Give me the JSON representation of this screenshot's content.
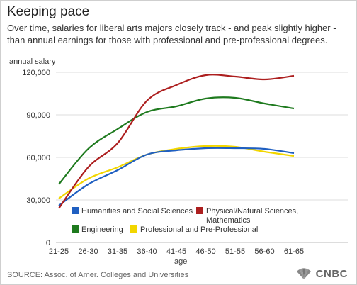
{
  "header": {
    "title": "Keeping pace",
    "subtitle": "Over time, salaries for liberal arts majors closely track - and peak slightly higher - than annual earnings for those with professional and pre-professional degrees."
  },
  "footer": {
    "source": "SOURCE: Assoc. of Amer. Colleges and Universities",
    "brand": "CNBC"
  },
  "chart_data": {
    "type": "line",
    "title": "Keeping pace",
    "xlabel": "age",
    "ylabel": "annual salary",
    "categories": [
      "21-25",
      "26-30",
      "31-35",
      "36-40",
      "41-45",
      "46-50",
      "51-55",
      "56-60",
      "61-65"
    ],
    "ylim": [
      0,
      120000
    ],
    "yticks": [
      0,
      30000,
      60000,
      90000,
      120000
    ],
    "ytick_labels": [
      "0",
      "30,000",
      "60,000",
      "90,000",
      "120,000"
    ],
    "grid": true,
    "legend_position": "inside-bottom",
    "series": [
      {
        "name": "Humanities and Social Sciences",
        "color": "#1f5fc1",
        "values": [
          26000,
          41000,
          51000,
          62000,
          65000,
          66500,
          66500,
          66000,
          63000
        ]
      },
      {
        "name": "Physical/Natural Sciences, Mathematics",
        "color": "#ad1f1f",
        "values": [
          24000,
          53000,
          70000,
          100000,
          111000,
          118000,
          117000,
          115000,
          117500
        ]
      },
      {
        "name": "Engineering",
        "color": "#1e7a1e",
        "values": [
          41000,
          66000,
          80000,
          92000,
          96000,
          101500,
          102000,
          98000,
          94500
        ]
      },
      {
        "name": "Professional and Pre-Professional",
        "color": "#f2d600",
        "values": [
          31000,
          45000,
          53000,
          62000,
          66000,
          68000,
          67500,
          64000,
          61000
        ]
      }
    ]
  }
}
